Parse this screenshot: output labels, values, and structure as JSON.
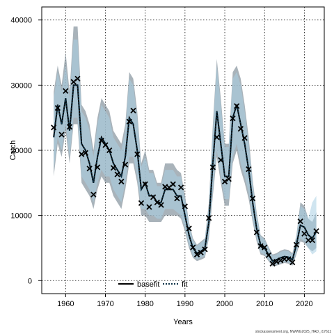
{
  "chart_data": {
    "type": "line",
    "xlabel": "Years",
    "ylabel": "Catch",
    "xlim": [
      1954,
      2025
    ],
    "ylim": [
      -2000,
      42000
    ],
    "x_ticks": [
      1960,
      1970,
      1980,
      1990,
      2000,
      2010,
      2020
    ],
    "y_ticks": [
      0,
      10000,
      20000,
      30000,
      40000
    ],
    "grid": true,
    "legend_position": "bottom-center",
    "colors": {
      "basefit_band": "#8c9aa3",
      "fit_band": "#a9cfe3",
      "basefit_line": "#000000",
      "fit_line": "#0b3146",
      "points": "#000000"
    },
    "series": [
      {
        "name": "basefit",
        "style": "solid",
        "x": [
          1957,
          1958,
          1959,
          1960,
          1961,
          1962,
          1963,
          1964,
          1965,
          1966,
          1967,
          1968,
          1969,
          1970,
          1971,
          1972,
          1973,
          1974,
          1975,
          1976,
          1977,
          1978,
          1979,
          1980,
          1981,
          1982,
          1983,
          1984,
          1985,
          1986,
          1987,
          1988,
          1989,
          1990,
          1991,
          1992,
          1993,
          1994,
          1995,
          1996,
          1997,
          1998,
          1999,
          2000,
          2001,
          2002,
          2003,
          2004,
          2005,
          2006,
          2007,
          2008,
          2009,
          2010,
          2011,
          2012,
          2013,
          2014,
          2015,
          2016,
          2017,
          2018,
          2019,
          2020,
          2021,
          2022,
          2023
        ],
        "y": [
          22000,
          27000,
          24000,
          28000,
          23000,
          30000,
          30000,
          21000,
          20000,
          18000,
          15000,
          19000,
          22000,
          21000,
          20000,
          18000,
          17000,
          16000,
          19000,
          25000,
          24000,
          20000,
          14000,
          15000,
          13000,
          13000,
          12000,
          12000,
          14000,
          14000,
          14000,
          13000,
          13000,
          10000,
          7000,
          5000,
          4200,
          4500,
          5000,
          9000,
          18000,
          26000,
          21000,
          16000,
          16000,
          25000,
          27000,
          24000,
          21000,
          17000,
          12000,
          8000,
          5500,
          5000,
          4000,
          3000,
          3200,
          3500,
          3700,
          3600,
          3200,
          5500,
          8500,
          8200,
          7000,
          6500,
          7500
        ],
        "lower": [
          16000,
          21000,
          19000,
          23000,
          18000,
          24000,
          24000,
          15000,
          14000,
          13000,
          11000,
          14000,
          16000,
          15000,
          15000,
          13000,
          12000,
          11000,
          14000,
          18000,
          18000,
          15000,
          10000,
          10000,
          9000,
          9000,
          9000,
          9000,
          10000,
          10000,
          10000,
          10000,
          9500,
          7500,
          5000,
          3500,
          3000,
          3200,
          3500,
          6500,
          13000,
          19000,
          15000,
          11500,
          11500,
          18000,
          20000,
          17000,
          15000,
          12500,
          9000,
          6000,
          4000,
          3800,
          3000,
          2200,
          2300,
          2500,
          2700,
          2600,
          2300,
          4000,
          6000,
          5800,
          5000,
          4500,
          5000
        ],
        "upper": [
          29000,
          33000,
          30000,
          35000,
          29000,
          39000,
          39000,
          27000,
          26000,
          24000,
          20000,
          25000,
          28000,
          27000,
          26000,
          23000,
          22000,
          21000,
          24000,
          32000,
          31000,
          26000,
          18000,
          20000,
          17000,
          17000,
          15000,
          15000,
          18000,
          18000,
          18000,
          17000,
          16500,
          13000,
          9000,
          6500,
          5500,
          6000,
          6500,
          12000,
          24000,
          34000,
          28000,
          21000,
          21000,
          32000,
          33000,
          31000,
          27000,
          22000,
          15500,
          10500,
          7000,
          6500,
          5200,
          4000,
          4200,
          4600,
          4800,
          4700,
          4200,
          7000,
          12000,
          11500,
          9500,
          9000,
          10500
        ]
      },
      {
        "name": "fit",
        "style": "dotted",
        "x": [
          1957,
          1958,
          1959,
          1960,
          1961,
          1962,
          1963,
          1964,
          1965,
          1966,
          1967,
          1968,
          1969,
          1970,
          1971,
          1972,
          1973,
          1974,
          1975,
          1976,
          1977,
          1978,
          1979,
          1980,
          1981,
          1982,
          1983,
          1984,
          1985,
          1986,
          1987,
          1988,
          1989,
          1990,
          1991,
          1992,
          1993,
          1994,
          1995,
          1996,
          1997,
          1998,
          1999,
          2000,
          2001,
          2002,
          2003,
          2004,
          2005,
          2006,
          2007,
          2008,
          2009,
          2010,
          2011,
          2012,
          2013,
          2014,
          2015,
          2016,
          2017,
          2018,
          2019,
          2020,
          2021,
          2022,
          2023
        ],
        "y": [
          22000,
          27000,
          24000,
          28000,
          23000,
          30000,
          30000,
          21000,
          20000,
          18000,
          15000,
          19000,
          22000,
          21000,
          20000,
          18000,
          17000,
          16000,
          19000,
          25000,
          24000,
          20000,
          14000,
          15000,
          13000,
          13000,
          12000,
          12000,
          14000,
          14000,
          14000,
          13000,
          13000,
          10000,
          7000,
          5000,
          4200,
          4500,
          5000,
          9000,
          18000,
          26000,
          21000,
          16000,
          16000,
          25000,
          27000,
          24000,
          21000,
          17000,
          12000,
          8000,
          5500,
          5000,
          4000,
          3000,
          3200,
          3500,
          3700,
          3600,
          3200,
          5500,
          8500,
          8200,
          7000,
          6500,
          7500
        ],
        "lower": [
          17000,
          22000,
          20000,
          24000,
          19000,
          25000,
          25000,
          16000,
          15000,
          14000,
          12000,
          15000,
          17000,
          16000,
          16000,
          14000,
          13000,
          12000,
          15000,
          19000,
          19000,
          16000,
          11000,
          11000,
          10000,
          10000,
          9500,
          9500,
          11000,
          11000,
          11000,
          10500,
          10000,
          8000,
          5500,
          3800,
          3300,
          3500,
          3800,
          7000,
          14000,
          20000,
          16000,
          12500,
          12500,
          19000,
          21000,
          18000,
          16000,
          13500,
          9500,
          6500,
          4300,
          4000,
          3200,
          2400,
          2500,
          2700,
          2900,
          2800,
          2500,
          4300,
          6500,
          6000,
          5000,
          4000,
          4500
        ],
        "upper": [
          28000,
          32000,
          29000,
          33000,
          28000,
          37000,
          37000,
          26000,
          25000,
          23000,
          19000,
          24000,
          27000,
          26000,
          25000,
          22000,
          21000,
          20000,
          23000,
          31000,
          30000,
          25000,
          17500,
          19000,
          16500,
          16500,
          14500,
          14500,
          17000,
          17000,
          17000,
          16000,
          16000,
          12500,
          8700,
          6200,
          5300,
          5800,
          6300,
          11500,
          23000,
          33000,
          27000,
          20500,
          20500,
          31000,
          32000,
          30000,
          26000,
          21000,
          15000,
          10000,
          6800,
          6300,
          5000,
          3800,
          4000,
          4400,
          4600,
          4500,
          4000,
          6800,
          11500,
          11000,
          9500,
          12000,
          13000
        ]
      }
    ],
    "observations": {
      "marker": "x",
      "x": [
        1957,
        1958,
        1959,
        1960,
        1961,
        1962,
        1963,
        1964,
        1965,
        1966,
        1967,
        1968,
        1969,
        1970,
        1971,
        1972,
        1973,
        1974,
        1975,
        1976,
        1977,
        1978,
        1979,
        1980,
        1981,
        1982,
        1983,
        1984,
        1985,
        1986,
        1987,
        1988,
        1989,
        1990,
        1991,
        1992,
        1993,
        1994,
        1995,
        1996,
        1997,
        1998,
        1999,
        2000,
        2001,
        2002,
        2003,
        2004,
        2005,
        2006,
        2007,
        2008,
        2009,
        2010,
        2011,
        2012,
        2013,
        2014,
        2015,
        2016,
        2017,
        2018,
        2019,
        2020,
        2021,
        2022,
        2023
      ],
      "y": [
        23500,
        26500,
        22400,
        29100,
        23600,
        30500,
        31000,
        19400,
        19600,
        17200,
        13200,
        17400,
        21500,
        20800,
        20000,
        17300,
        16300,
        15200,
        17800,
        24400,
        26100,
        19400,
        11900,
        14800,
        11300,
        12800,
        12000,
        11600,
        14400,
        14300,
        14800,
        12600,
        14300,
        11400,
        8000,
        5100,
        4000,
        4300,
        4800,
        9600,
        17400,
        22000,
        18500,
        15200,
        15600,
        24900,
        26800,
        23300,
        21900,
        17100,
        12600,
        7400,
        5300,
        5100,
        3900,
        2600,
        2900,
        3100,
        3300,
        3300,
        2800,
        5500,
        9100,
        7200,
        6200,
        6200,
        7600
      ]
    },
    "legend": [
      "basefit",
      "fit"
    ],
    "footer": "stockassessment.org, NWWG2025_HAD_r17611"
  }
}
